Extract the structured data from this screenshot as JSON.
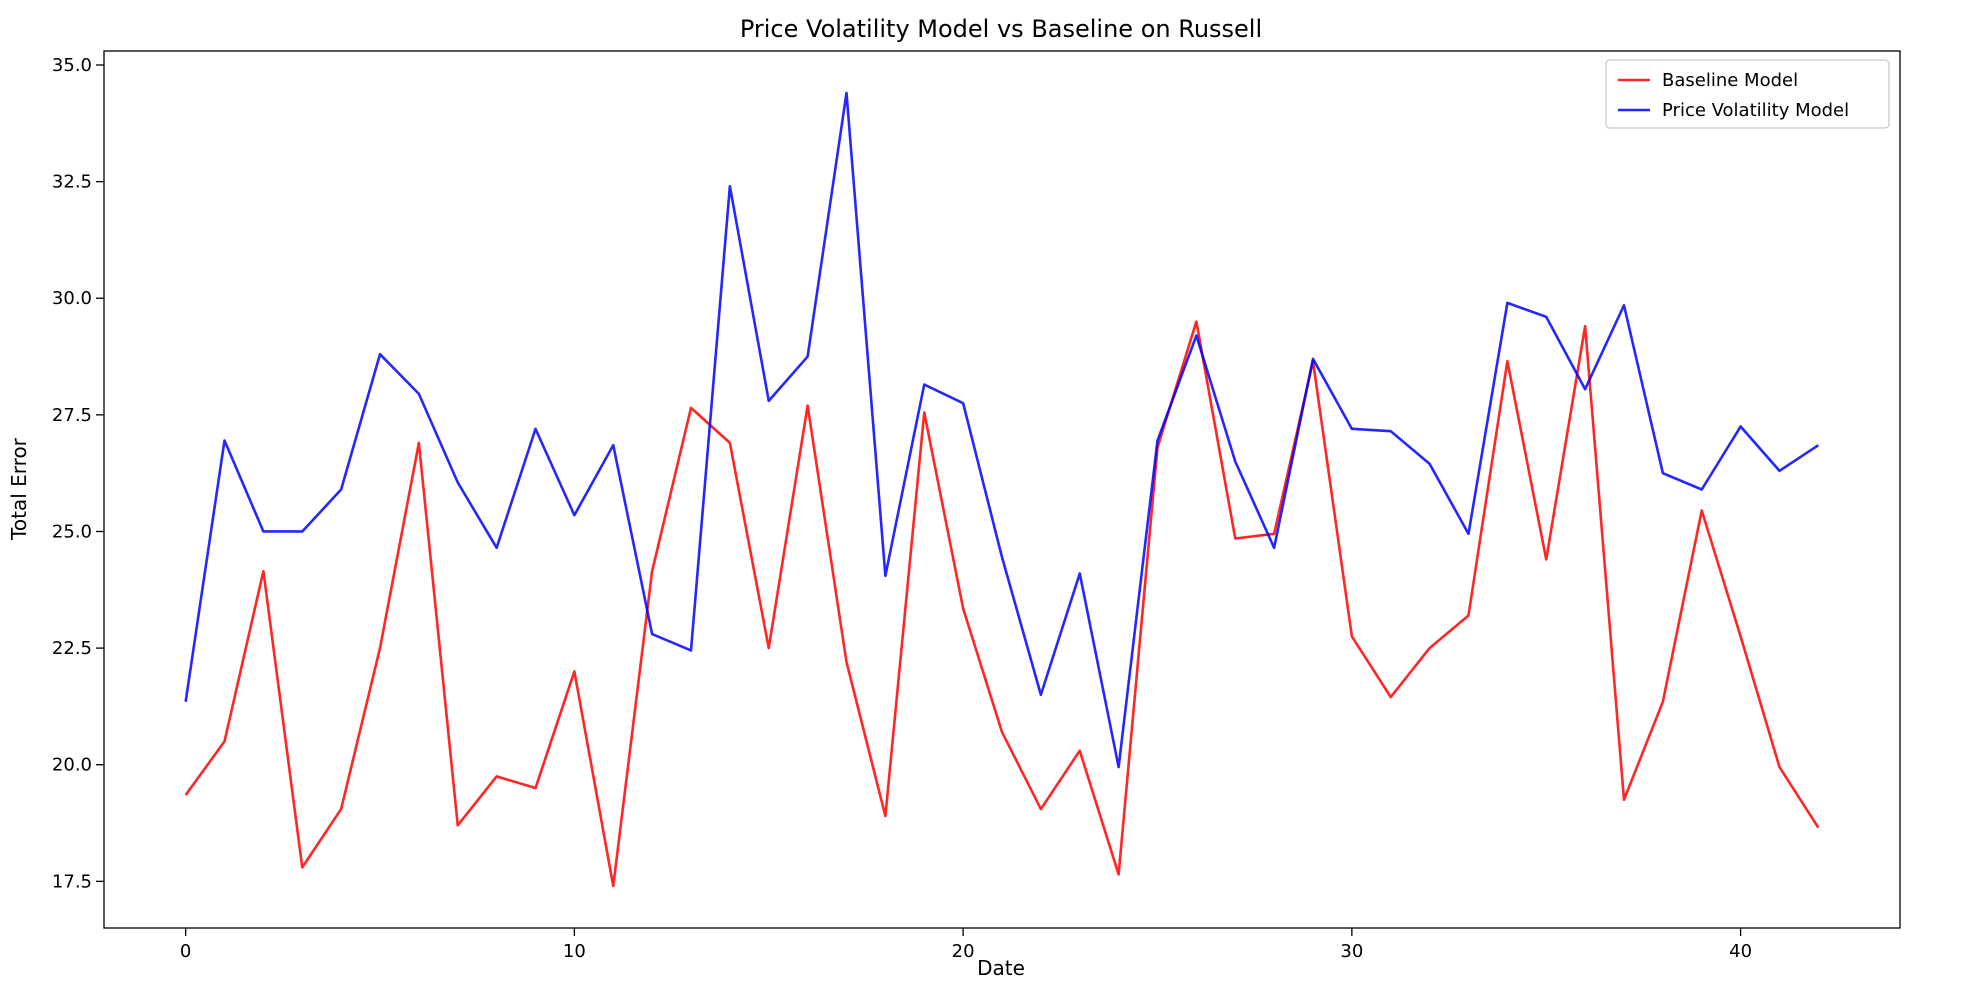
{
  "chart_data": {
    "type": "line",
    "title": "Price Volatility Model vs Baseline on Russell",
    "xlabel": "Date",
    "ylabel": "Total Error",
    "xlim": [
      -2.1,
      44.1
    ],
    "ylim": [
      16.5,
      35.3
    ],
    "xticks": [
      0,
      10,
      20,
      30,
      40
    ],
    "yticks": [
      17.5,
      20.0,
      22.5,
      25.0,
      27.5,
      30.0,
      32.5,
      35.0
    ],
    "x": [
      0,
      1,
      2,
      3,
      4,
      5,
      6,
      7,
      8,
      9,
      10,
      11,
      12,
      13,
      14,
      15,
      16,
      17,
      18,
      19,
      20,
      21,
      22,
      23,
      24,
      25,
      26,
      27,
      28,
      29,
      30,
      31,
      32,
      33,
      34,
      35,
      36,
      37,
      38,
      39,
      40,
      41,
      42
    ],
    "grid": false,
    "legend_position": "top-right",
    "series": [
      {
        "name": "Baseline Model",
        "color": "#ff0000",
        "values": [
          19.35,
          20.5,
          24.15,
          17.8,
          19.05,
          22.5,
          26.9,
          18.7,
          19.75,
          19.5,
          22.0,
          17.4,
          24.15,
          27.65,
          26.9,
          22.5,
          27.7,
          22.2,
          18.9,
          27.55,
          23.35,
          20.7,
          19.05,
          20.3,
          17.65,
          26.8,
          29.5,
          24.85,
          24.95,
          28.65,
          22.75,
          21.45,
          22.5,
          23.2,
          28.65,
          24.4,
          29.4,
          19.25,
          21.35,
          25.45,
          22.75,
          19.95,
          18.65
        ]
      },
      {
        "name": "Price Volatility Model",
        "color": "#0000ff",
        "values": [
          21.35,
          26.95,
          25.0,
          25.0,
          25.9,
          28.8,
          27.95,
          26.05,
          24.65,
          27.2,
          25.35,
          26.85,
          22.8,
          22.45,
          32.4,
          27.8,
          28.75,
          34.4,
          24.05,
          28.15,
          27.75,
          24.45,
          21.5,
          24.1,
          19.95,
          26.95,
          29.2,
          26.5,
          24.65,
          28.7,
          27.2,
          27.15,
          26.45,
          24.95,
          29.9,
          29.6,
          28.05,
          29.85,
          26.25,
          25.9,
          27.25,
          26.3,
          26.85
        ]
      }
    ]
  }
}
